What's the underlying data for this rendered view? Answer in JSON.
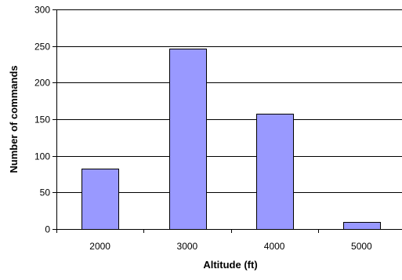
{
  "chart_data": {
    "type": "bar",
    "categories": [
      "2000",
      "3000",
      "4000",
      "5000"
    ],
    "values": [
      82,
      246,
      158,
      10
    ],
    "xlabel": "Altitude (ft)",
    "ylabel": "Number of commands",
    "ylim": [
      0,
      300
    ],
    "yticks": [
      "0",
      "50",
      "100",
      "150",
      "200",
      "250",
      "300"
    ],
    "grid": "horizontal",
    "legend": "none",
    "colors": {
      "bar_fill": "#9999ff",
      "bar_stroke": "#000000",
      "axis": "#000000",
      "gridline": "#000000"
    }
  }
}
